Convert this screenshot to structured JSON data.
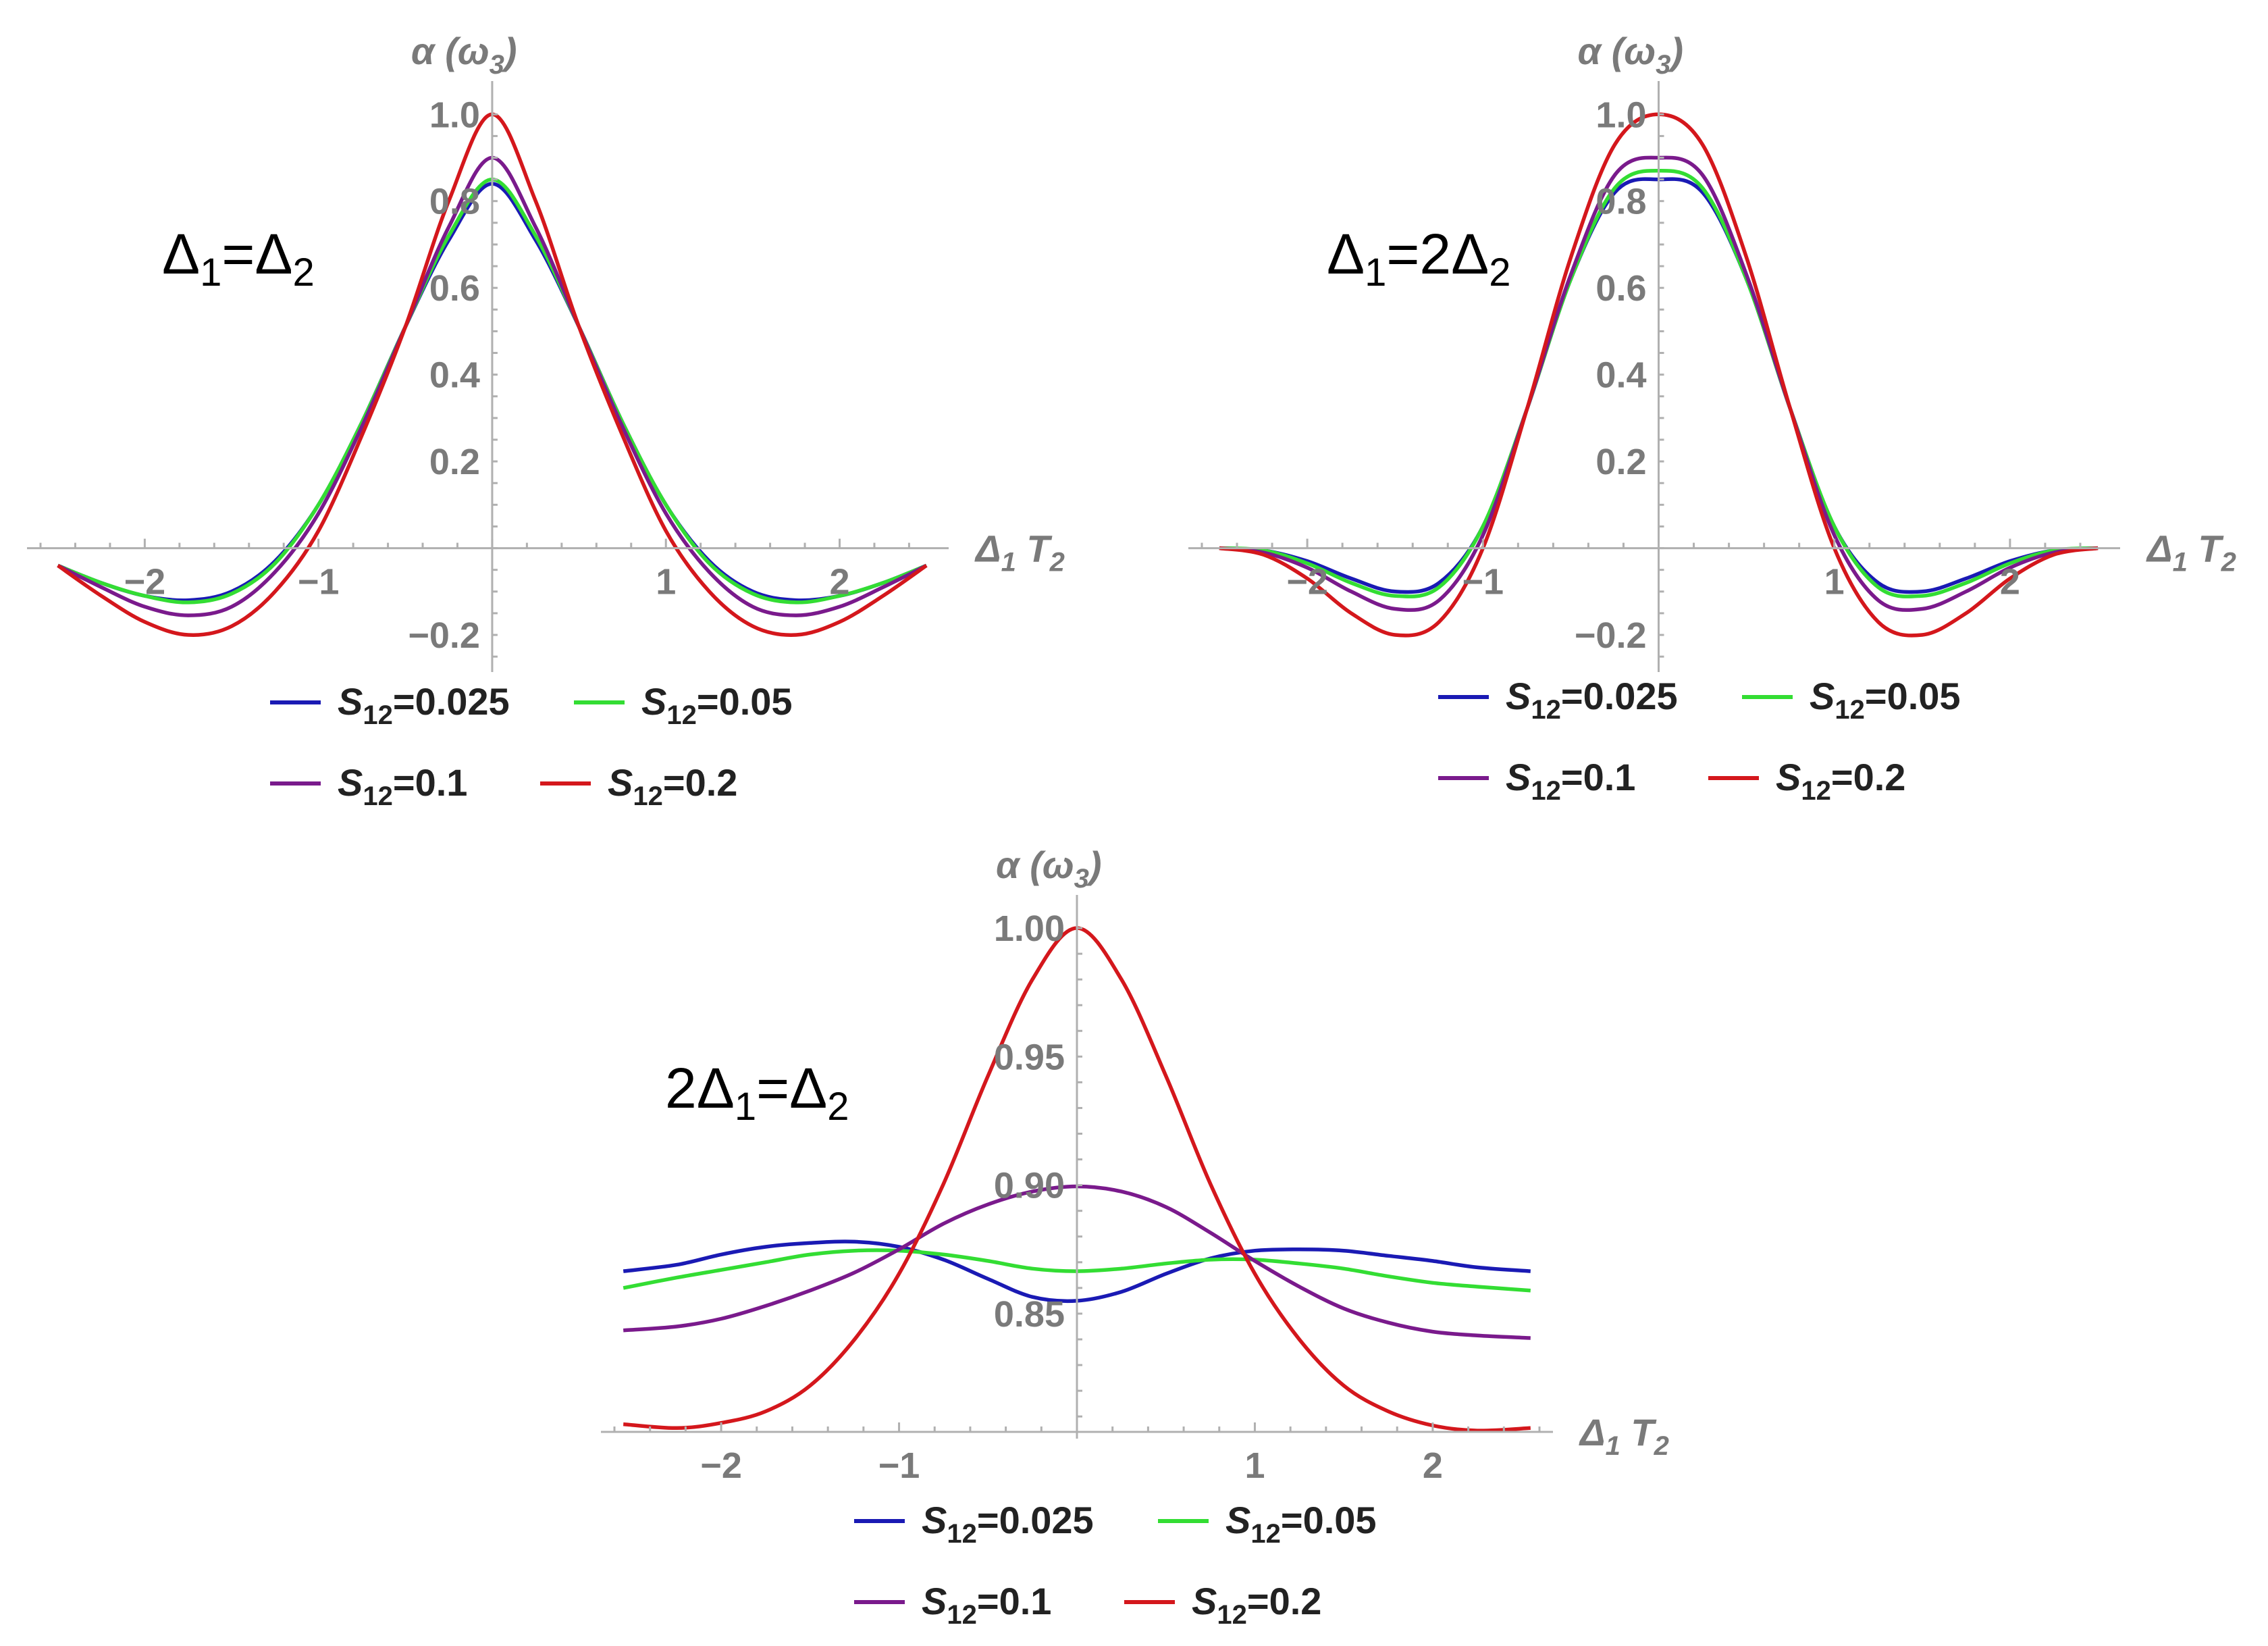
{
  "colors": {
    "S12=0.025": "#1a1ab4",
    "S12=0.05": "#33dd33",
    "S12=0.1": "#7a1a8c",
    "S12=0.2": "#d4171c"
  },
  "chart_data": [
    {
      "type": "line",
      "title": "",
      "annotation": {
        "base": "Δ",
        "sub1": "1",
        "mid": "=Δ",
        "sub2": "2",
        "pre": ""
      },
      "ylabel": {
        "main": "α (ω",
        "sub": "3",
        "close": ")"
      },
      "xlabel": {
        "main": "Δ",
        "sub": "1",
        "rest": " T",
        "sub2": "2"
      },
      "xlim": [
        -2.6,
        2.55
      ],
      "ylim": [
        -0.27,
        1.03
      ],
      "xticks": [
        -2,
        -1,
        1,
        2
      ],
      "xtick_labels": [
        "−2",
        "−1",
        "1",
        "2"
      ],
      "yticks": [
        -0.2,
        0.2,
        0.4,
        0.6,
        0.8,
        1.0
      ],
      "ytick_labels": [
        "−0.2",
        "0.2",
        "0.4",
        "0.6",
        "0.8",
        "1.0"
      ],
      "x": [
        -2.5,
        -2.25,
        -2.0,
        -1.75,
        -1.5,
        -1.25,
        -1.0,
        -0.75,
        -0.5,
        -0.25,
        0.0,
        0.25,
        0.5,
        0.75,
        1.0,
        1.25,
        1.5,
        1.75,
        2.0,
        2.25,
        2.5
      ],
      "series": [
        {
          "name": "S12=0.025",
          "legend": {
            "s": "S",
            "sub": "12",
            "val": "=0.025"
          },
          "values": [
            -0.04,
            -0.08,
            -0.11,
            -0.12,
            -0.1,
            -0.03,
            0.1,
            0.29,
            0.51,
            0.71,
            0.84,
            0.71,
            0.51,
            0.29,
            0.1,
            -0.03,
            -0.1,
            -0.12,
            -0.11,
            -0.08,
            -0.04
          ]
        },
        {
          "name": "S12=0.05",
          "legend": {
            "s": "S",
            "sub": "12",
            "val": "=0.05"
          },
          "values": [
            -0.04,
            -0.08,
            -0.11,
            -0.125,
            -0.105,
            -0.035,
            0.1,
            0.29,
            0.51,
            0.72,
            0.85,
            0.72,
            0.51,
            0.29,
            0.1,
            -0.035,
            -0.105,
            -0.125,
            -0.11,
            -0.08,
            -0.04
          ]
        },
        {
          "name": "S12=0.1",
          "legend": {
            "s": "S",
            "sub": "12",
            "val": "=0.1"
          },
          "values": [
            -0.04,
            -0.09,
            -0.135,
            -0.155,
            -0.135,
            -0.055,
            0.08,
            0.28,
            0.51,
            0.74,
            0.9,
            0.74,
            0.51,
            0.28,
            0.08,
            -0.055,
            -0.135,
            -0.155,
            -0.135,
            -0.09,
            -0.04
          ]
        },
        {
          "name": "S12=0.2",
          "legend": {
            "s": "S",
            "sub": "12",
            "val": "=0.2"
          },
          "values": [
            -0.04,
            -0.11,
            -0.17,
            -0.2,
            -0.18,
            -0.1,
            0.04,
            0.26,
            0.51,
            0.8,
            1.0,
            0.8,
            0.51,
            0.26,
            0.04,
            -0.1,
            -0.18,
            -0.2,
            -0.17,
            -0.11,
            -0.04
          ]
        }
      ]
    },
    {
      "type": "line",
      "title": "",
      "annotation": {
        "base": "Δ",
        "sub1": "1",
        "mid": "=2Δ",
        "sub2": "2",
        "pre": ""
      },
      "ylabel": {
        "main": "α (ω",
        "sub": "3",
        "close": ")"
      },
      "xlabel": {
        "main": "Δ",
        "sub": "1",
        "rest": " T",
        "sub2": "2"
      },
      "xlim": [
        -2.6,
        2.55
      ],
      "ylim": [
        -0.27,
        1.03
      ],
      "xticks": [
        -2,
        -1,
        1,
        2
      ],
      "xtick_labels": [
        "−2",
        "−1",
        "1",
        "2"
      ],
      "yticks": [
        -0.2,
        0.2,
        0.4,
        0.6,
        0.8,
        1.0
      ],
      "ytick_labels": [
        "−0.2",
        "0.2",
        "0.4",
        "0.6",
        "0.8",
        "1.0"
      ],
      "x": [
        -2.5,
        -2.25,
        -2.0,
        -1.75,
        -1.5,
        -1.25,
        -1.0,
        -0.75,
        -0.5,
        -0.25,
        0.0,
        0.25,
        0.5,
        0.75,
        1.0,
        1.25,
        1.5,
        1.75,
        2.0,
        2.25,
        2.5
      ],
      "series": [
        {
          "name": "S12=0.025",
          "legend": {
            "s": "S",
            "sub": "12",
            "val": "=0.025"
          },
          "values": [
            0.0,
            -0.005,
            -0.03,
            -0.07,
            -0.1,
            -0.08,
            0.05,
            0.32,
            0.62,
            0.82,
            0.85,
            0.82,
            0.62,
            0.32,
            0.05,
            -0.08,
            -0.1,
            -0.07,
            -0.03,
            -0.005,
            0.0
          ]
        },
        {
          "name": "S12=0.05",
          "legend": {
            "s": "S",
            "sub": "12",
            "val": "=0.05"
          },
          "values": [
            0.0,
            -0.005,
            -0.035,
            -0.08,
            -0.11,
            -0.09,
            0.05,
            0.32,
            0.62,
            0.83,
            0.87,
            0.83,
            0.62,
            0.32,
            0.05,
            -0.09,
            -0.11,
            -0.08,
            -0.035,
            -0.005,
            0.0
          ]
        },
        {
          "name": "S12=0.1",
          "legend": {
            "s": "S",
            "sub": "12",
            "val": "=0.1"
          },
          "values": [
            0.0,
            -0.01,
            -0.045,
            -0.1,
            -0.14,
            -0.12,
            0.03,
            0.32,
            0.63,
            0.86,
            0.9,
            0.86,
            0.63,
            0.32,
            0.03,
            -0.12,
            -0.14,
            -0.1,
            -0.045,
            -0.01,
            0.0
          ]
        },
        {
          "name": "S12=0.2",
          "legend": {
            "s": "S",
            "sub": "12",
            "val": "=0.2"
          },
          "values": [
            0.0,
            -0.015,
            -0.07,
            -0.15,
            -0.2,
            -0.17,
            0.0,
            0.32,
            0.67,
            0.93,
            1.0,
            0.93,
            0.67,
            0.32,
            0.0,
            -0.17,
            -0.2,
            -0.15,
            -0.07,
            -0.015,
            0.0
          ]
        }
      ]
    },
    {
      "type": "line",
      "title": "",
      "annotation": {
        "base": "Δ",
        "sub1": "1",
        "mid": "=Δ",
        "sub2": "2",
        "pre": "2"
      },
      "ylabel": {
        "main": "α (ω",
        "sub": "3",
        "close": ")"
      },
      "xlabel": {
        "main": "Δ",
        "sub": "1",
        "rest": " T",
        "sub2": "2"
      },
      "xlim": [
        -2.6,
        2.6
      ],
      "ylim": [
        0.804,
        1.005
      ],
      "xticks": [
        -2,
        -1,
        1,
        2
      ],
      "xtick_labels": [
        "−2",
        "−1",
        "1",
        "2"
      ],
      "yticks": [
        0.85,
        0.9,
        0.95,
        1.0
      ],
      "ytick_labels": [
        "0.85",
        "0.90",
        "0.95",
        "1.00"
      ],
      "x": [
        -2.55,
        -2.25,
        -2.0,
        -1.75,
        -1.5,
        -1.25,
        -1.0,
        -0.75,
        -0.5,
        -0.25,
        0.0,
        0.25,
        0.5,
        0.75,
        1.0,
        1.25,
        1.5,
        1.75,
        2.0,
        2.25,
        2.55
      ],
      "series": [
        {
          "name": "S12=0.025",
          "legend": {
            "s": "S",
            "sub": "12",
            "val": "=0.025"
          },
          "values": [
            0.8665,
            0.869,
            0.873,
            0.876,
            0.8775,
            0.878,
            0.876,
            0.871,
            0.8635,
            0.8565,
            0.855,
            0.8585,
            0.8655,
            0.8715,
            0.8745,
            0.875,
            0.8745,
            0.8725,
            0.8705,
            0.868,
            0.8665
          ]
        },
        {
          "name": "S12=0.05",
          "legend": {
            "s": "S",
            "sub": "12",
            "val": "=0.05"
          },
          "values": [
            0.86,
            0.864,
            0.867,
            0.87,
            0.873,
            0.8745,
            0.8745,
            0.873,
            0.8705,
            0.8675,
            0.8665,
            0.8675,
            0.8695,
            0.871,
            0.871,
            0.8695,
            0.8675,
            0.8645,
            0.862,
            0.8605,
            0.859
          ]
        },
        {
          "name": "S12=0.1",
          "legend": {
            "s": "S",
            "sub": "12",
            "val": "=0.1"
          },
          "values": [
            0.8435,
            0.845,
            0.848,
            0.853,
            0.859,
            0.866,
            0.875,
            0.885,
            0.8925,
            0.8975,
            0.8995,
            0.8975,
            0.8915,
            0.8815,
            0.8705,
            0.8605,
            0.852,
            0.8465,
            0.843,
            0.8415,
            0.8405
          ]
        },
        {
          "name": "S12=0.2",
          "legend": {
            "s": "S",
            "sub": "12",
            "val": "=0.2"
          },
          "values": [
            0.807,
            0.8055,
            0.8075,
            0.812,
            0.822,
            0.84,
            0.8655,
            0.9005,
            0.9425,
            0.98,
            1.0,
            0.98,
            0.9425,
            0.9005,
            0.8655,
            0.84,
            0.822,
            0.812,
            0.8065,
            0.8045,
            0.8055
          ]
        }
      ]
    }
  ]
}
